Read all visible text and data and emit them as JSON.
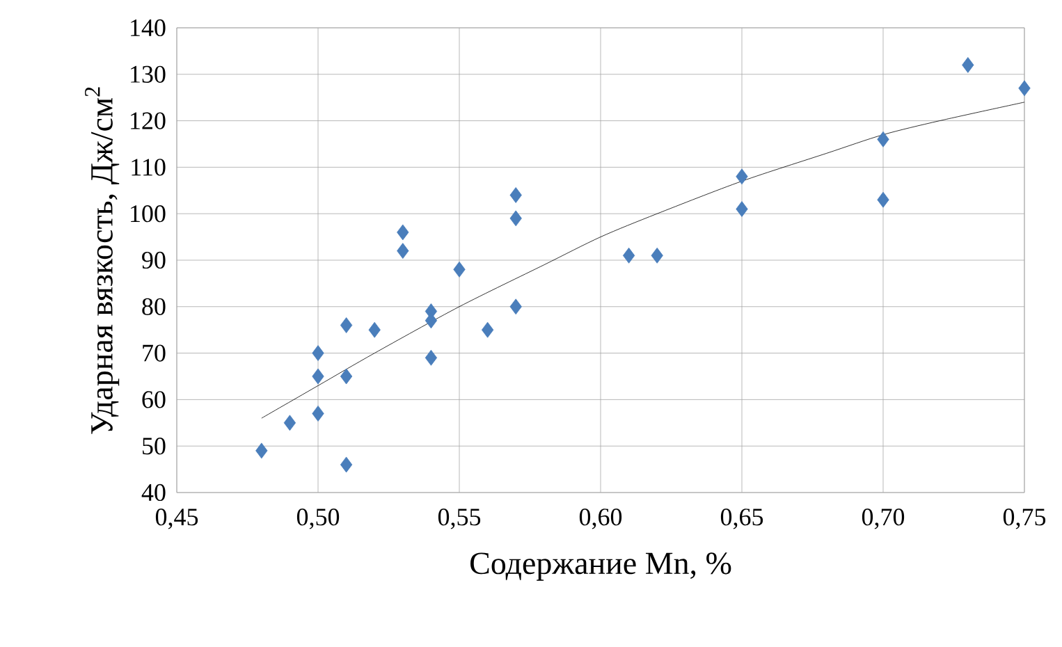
{
  "chart_data": {
    "type": "scatter",
    "xlabel": "Содержание Mn, %",
    "ylabel": "Ударная вязкость, Дж/см$^{2}$",
    "xlim": [
      0.45,
      0.75
    ],
    "ylim": [
      40,
      140
    ],
    "xticks": [
      {
        "value": 0.45,
        "label": "0,45"
      },
      {
        "value": 0.5,
        "label": "0,50"
      },
      {
        "value": 0.55,
        "label": "0,55"
      },
      {
        "value": 0.6,
        "label": "0,60"
      },
      {
        "value": 0.65,
        "label": "0,65"
      },
      {
        "value": 0.7,
        "label": "0,70"
      },
      {
        "value": 0.75,
        "label": "0,75"
      }
    ],
    "yticks": [
      40,
      50,
      60,
      70,
      80,
      90,
      100,
      110,
      120,
      130,
      140
    ],
    "grid": true,
    "series": [
      {
        "color": "#4a7ebb",
        "marker": "diamond",
        "x": [
          0.48,
          0.49,
          0.5,
          0.5,
          0.5,
          0.51,
          0.51,
          0.51,
          0.52,
          0.53,
          0.53,
          0.54,
          0.54,
          0.54,
          0.55,
          0.56,
          0.57,
          0.57,
          0.57,
          0.61,
          0.62,
          0.65,
          0.65,
          0.7,
          0.7,
          0.73,
          0.75
        ],
        "values": [
          49,
          55,
          70,
          65,
          57,
          76,
          65,
          46,
          75,
          96,
          92,
          79,
          77,
          69,
          88,
          75,
          104,
          99,
          80,
          91,
          91,
          108,
          101,
          116,
          103,
          132,
          127
        ]
      },
      {
        "type": "line",
        "color": "#000000",
        "marker": "none",
        "line_style": "solid",
        "x": [
          0.48,
          0.5,
          0.52,
          0.55,
          0.58,
          0.6,
          0.62,
          0.65,
          0.68,
          0.7,
          0.72,
          0.75
        ],
        "values": [
          56,
          63,
          70,
          80,
          89,
          95,
          100,
          107,
          113,
          117,
          120,
          124
        ]
      }
    ]
  }
}
